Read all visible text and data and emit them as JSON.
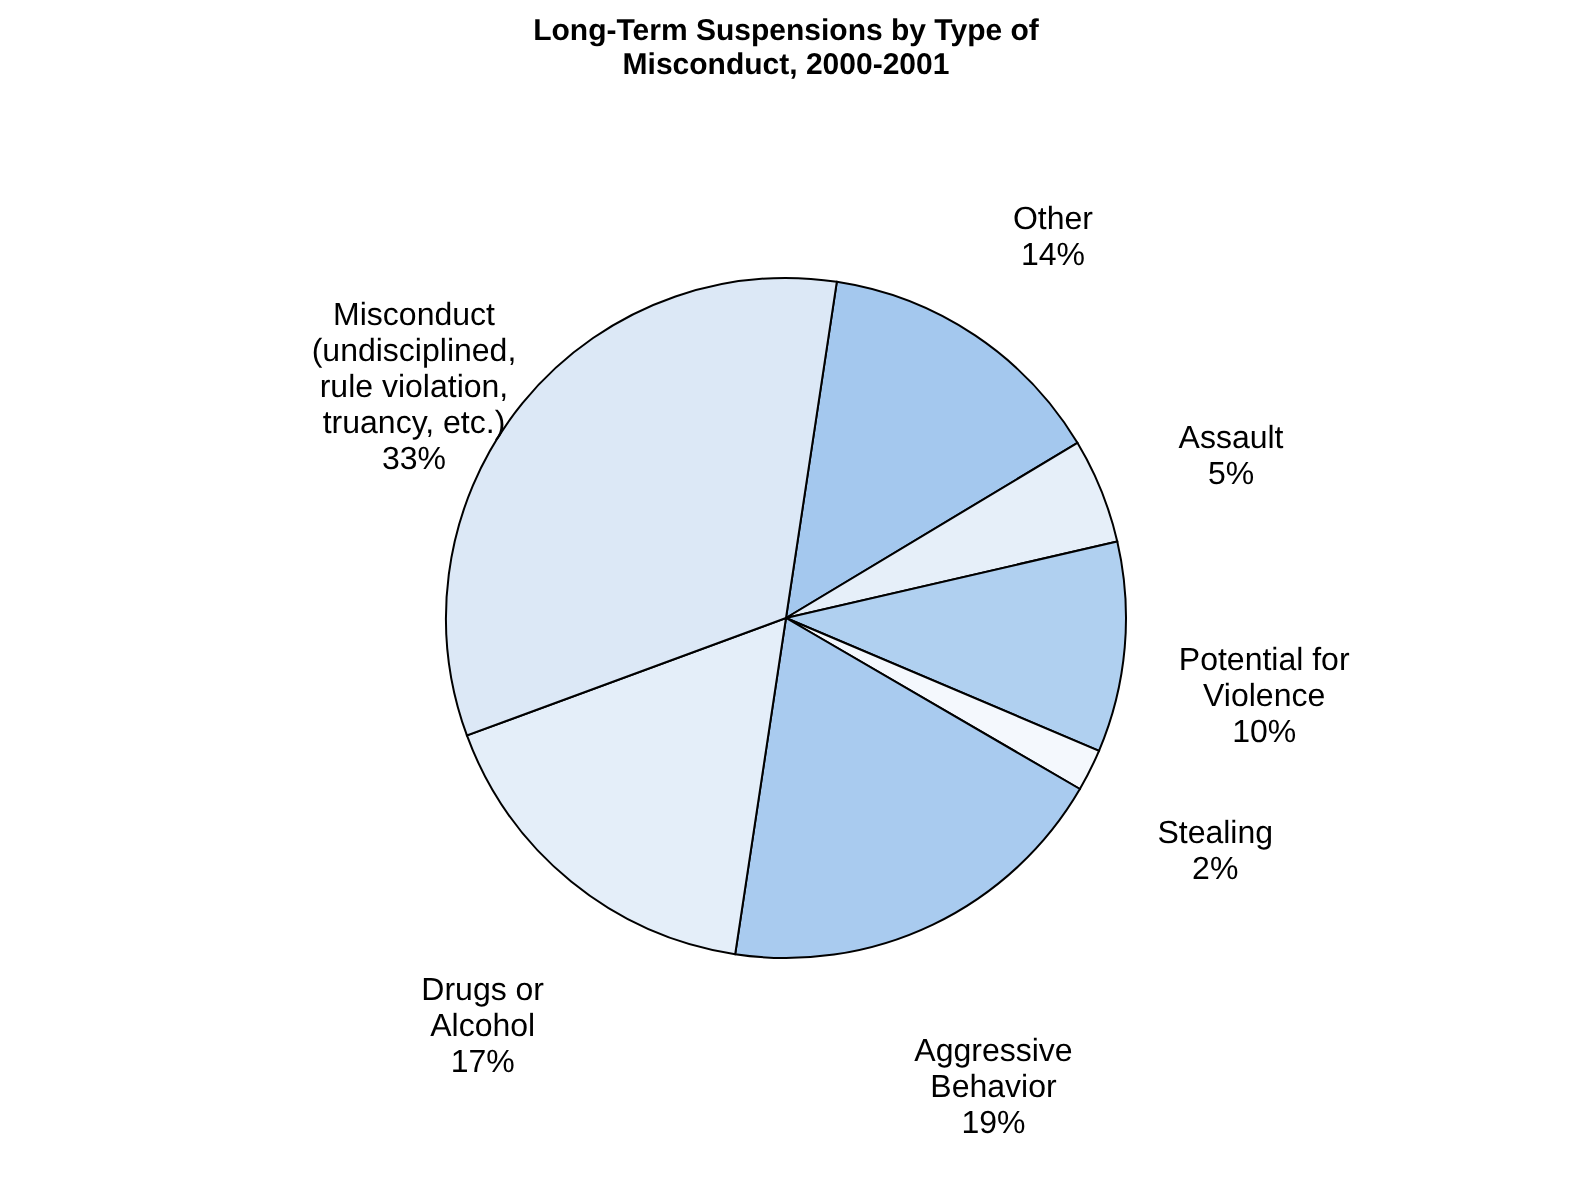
{
  "chart_data": {
    "type": "pie",
    "title": "Long-Term Suspensions by Type of Misconduct, 2000-2001",
    "categories": [
      "Other",
      "Assault",
      "Potential for Violence",
      "Stealing",
      "Aggressive Behavior",
      "Drugs or Alcohol",
      "Misconduct (undisciplined, rule violation, truancy, etc.)"
    ],
    "values": [
      14,
      5,
      10,
      2,
      19,
      17,
      33
    ],
    "value_labels": [
      "14%",
      "5%",
      "10%",
      "2%",
      "19%",
      "17%",
      "33%"
    ],
    "colors": [
      "#a4c8ee",
      "#e6eff9",
      "#b0d0f0",
      "#f4f8fd",
      "#a9cbef",
      "#e4eef9",
      "#dce8f6"
    ]
  }
}
